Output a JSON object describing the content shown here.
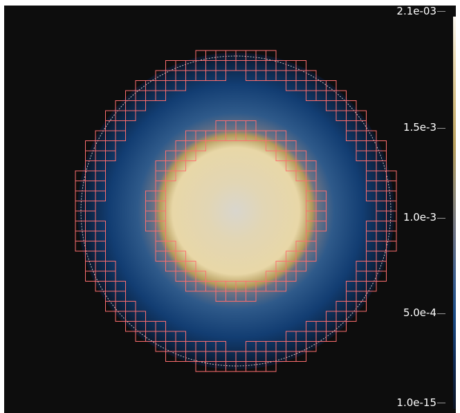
{
  "viewer": {
    "background_color": "#0d0d0d",
    "mesh_color": "#ff6f6f",
    "domain_outline_color": "#e8e8e8"
  },
  "colorbar": {
    "max_label": "2.1e-03",
    "min_label": "1.0e-15",
    "tick_labels": [
      "1.5e-3",
      "1.0e-3",
      "5.0e-4"
    ],
    "colors": [
      "#fbf8f2",
      "#d3bd82",
      "#8f8a76",
      "#1a4c86",
      "#0b1424"
    ]
  }
}
